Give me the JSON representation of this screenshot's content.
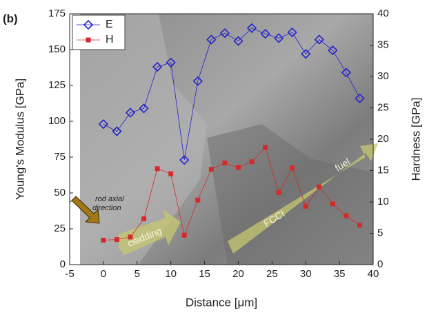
{
  "chart_data": {
    "type": "line",
    "panel_label": "(b)",
    "x_label": "Distance [μm]",
    "y_label": "Young's Modulus [GPa]",
    "y2_label": "Hardness [GPa]",
    "x": [
      0,
      2,
      4,
      6,
      8,
      10,
      12,
      14,
      16,
      18,
      20,
      22,
      24,
      26,
      28,
      30,
      32,
      34,
      36,
      38
    ],
    "series": [
      {
        "name": "E",
        "color": "#2222cc",
        "marker": "diamond",
        "axis": "y",
        "values": [
          98,
          93,
          106,
          109,
          138,
          141,
          73,
          128,
          157,
          161.5,
          156,
          165,
          161,
          158,
          162,
          147,
          157,
          149.5,
          134,
          116
        ]
      },
      {
        "name": "H",
        "color": "#d42a2a",
        "marker": "square",
        "axis": "y2",
        "values": [
          3.9,
          4,
          4.4,
          7.3,
          15.3,
          14.5,
          4.7,
          10.3,
          15.2,
          16.2,
          15.5,
          16.4,
          18.7,
          11.5,
          15.4,
          9.3,
          12.4,
          9.7,
          7.8,
          6.3
        ]
      }
    ],
    "xlim": [
      -5,
      40
    ],
    "xticks": [
      -5,
      0,
      5,
      10,
      15,
      20,
      25,
      30,
      35,
      40
    ],
    "ylim": [
      0,
      175
    ],
    "yticks": [
      0,
      25,
      50,
      75,
      100,
      125,
      150,
      175
    ],
    "y2lim": [
      0,
      40
    ],
    "y2ticks": [
      0,
      5,
      10,
      15,
      20,
      25,
      30,
      35,
      40
    ],
    "legend": "upper left",
    "annotations": [
      "rod axial",
      "direction",
      "cladding",
      "FCCI",
      "fuel"
    ]
  }
}
